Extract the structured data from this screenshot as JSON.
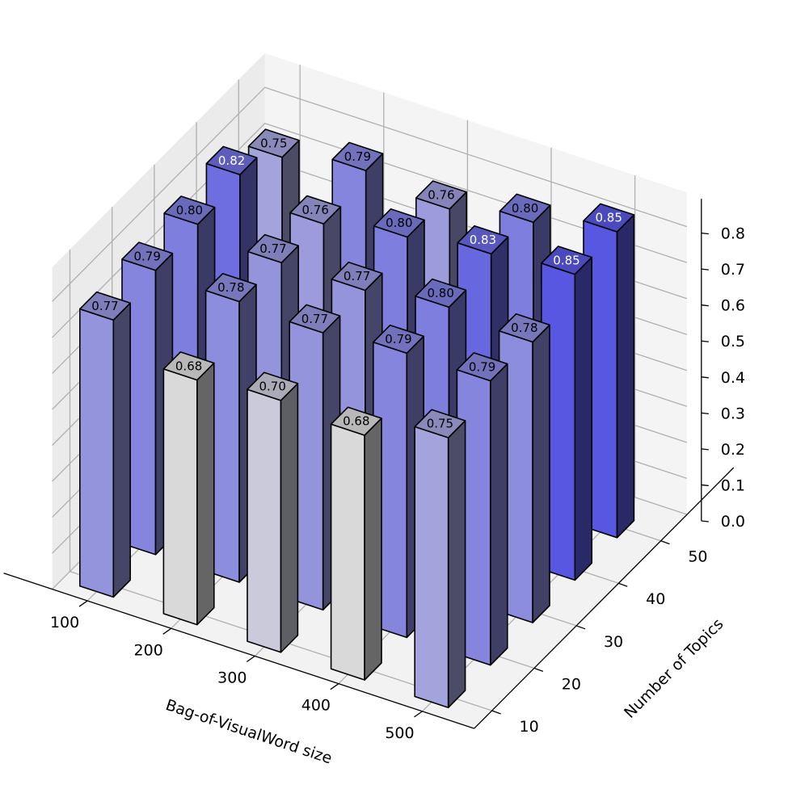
{
  "chart_data": {
    "type": "bar3d",
    "xlabel": "Bag-of-VisualWord size",
    "ylabel": "Number of Topics",
    "x": [
      100,
      200,
      300,
      400,
      500
    ],
    "y": [
      10,
      20,
      30,
      40,
      50
    ],
    "zticks": [
      "0.0",
      "0.1",
      "0.2",
      "0.3",
      "0.4",
      "0.5",
      "0.6",
      "0.7",
      "0.8"
    ],
    "xtick_labels": [
      "100",
      "200",
      "300",
      "400",
      "500"
    ],
    "ytick_labels": [
      "10",
      "20",
      "30",
      "40",
      "50"
    ],
    "zlim": [
      0,
      0.85
    ],
    "values": [
      {
        "x": 100,
        "y": 10,
        "value": 0.77,
        "label": "0.77"
      },
      {
        "x": 100,
        "y": 20,
        "value": 0.79,
        "label": "0.79"
      },
      {
        "x": 100,
        "y": 30,
        "value": 0.8,
        "label": "0.80"
      },
      {
        "x": 100,
        "y": 40,
        "value": 0.82,
        "label": "0.82"
      },
      {
        "x": 100,
        "y": 50,
        "value": 0.75,
        "label": "0.75"
      },
      {
        "x": 200,
        "y": 10,
        "value": 0.68,
        "label": "0.68"
      },
      {
        "x": 200,
        "y": 20,
        "value": 0.78,
        "label": "0.78"
      },
      {
        "x": 200,
        "y": 30,
        "value": 0.77,
        "label": "0.77"
      },
      {
        "x": 200,
        "y": 40,
        "value": 0.76,
        "label": "0.76"
      },
      {
        "x": 200,
        "y": 50,
        "value": 0.79,
        "label": "0.79"
      },
      {
        "x": 300,
        "y": 10,
        "value": 0.7,
        "label": "0.70"
      },
      {
        "x": 300,
        "y": 20,
        "value": 0.77,
        "label": "0.77"
      },
      {
        "x": 300,
        "y": 30,
        "value": 0.77,
        "label": "0.77"
      },
      {
        "x": 300,
        "y": 40,
        "value": 0.8,
        "label": "0.80"
      },
      {
        "x": 300,
        "y": 50,
        "value": 0.76,
        "label": "0.76"
      },
      {
        "x": 400,
        "y": 10,
        "value": 0.68,
        "label": "0.68"
      },
      {
        "x": 400,
        "y": 20,
        "value": 0.79,
        "label": "0.79"
      },
      {
        "x": 400,
        "y": 30,
        "value": 0.8,
        "label": "0.80"
      },
      {
        "x": 400,
        "y": 40,
        "value": 0.83,
        "label": "0.83"
      },
      {
        "x": 400,
        "y": 50,
        "value": 0.8,
        "label": "0.80"
      },
      {
        "x": 500,
        "y": 10,
        "value": 0.75,
        "label": "0.75"
      },
      {
        "x": 500,
        "y": 20,
        "value": 0.79,
        "label": "0.79"
      },
      {
        "x": 500,
        "y": 30,
        "value": 0.78,
        "label": "0.78"
      },
      {
        "x": 500,
        "y": 40,
        "value": 0.85,
        "label": "0.85"
      },
      {
        "x": 500,
        "y": 50,
        "value": 0.85,
        "label": "0.85"
      }
    ],
    "colormap": {
      "low": "#e0e0e0",
      "high": "#5a5ae8"
    },
    "grid": true
  }
}
